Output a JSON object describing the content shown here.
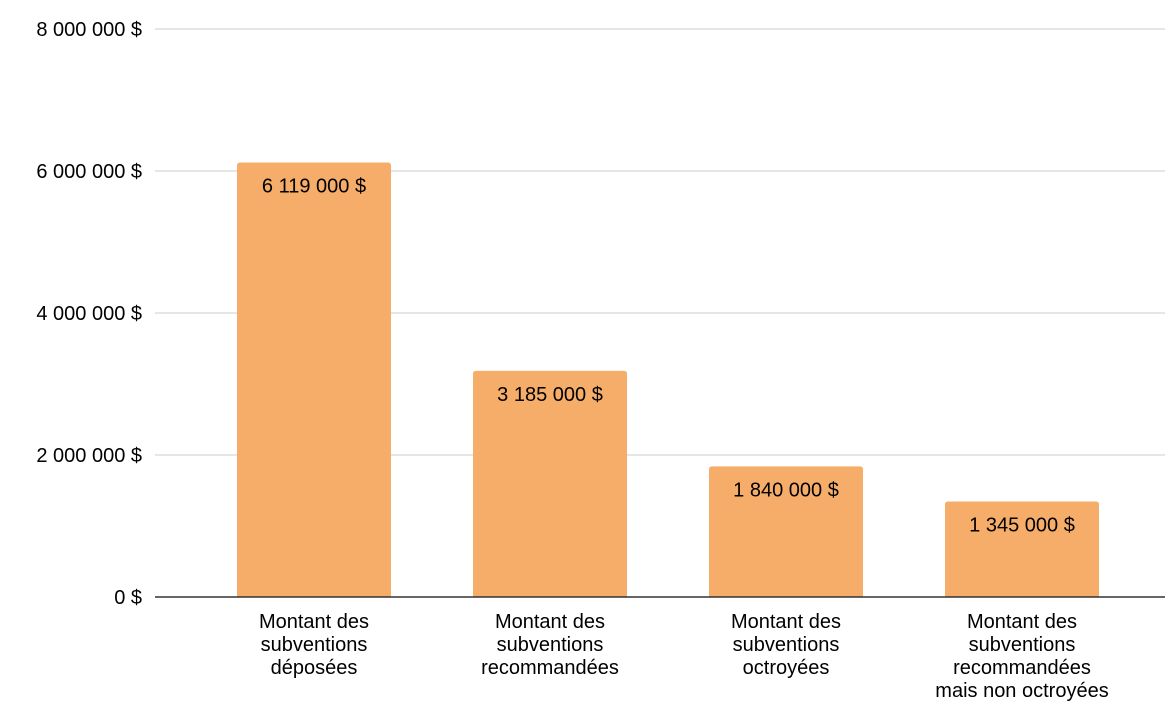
{
  "chart_data": {
    "type": "bar",
    "title": "",
    "xlabel": "",
    "ylabel": "",
    "categories": [
      [
        "Montant des",
        "subventions",
        "déposées"
      ],
      [
        "Montant des",
        "subventions",
        "recommandées"
      ],
      [
        "Montant des",
        "subventions",
        "octroyées"
      ],
      [
        "Montant des",
        "subventions",
        "recommandées",
        "mais non octroyées"
      ]
    ],
    "values": [
      6119000,
      3185000,
      1840000,
      1345000
    ],
    "value_labels": [
      "6 119 000 $",
      "3 185 000 $",
      "1 840 000 $",
      "1 345 000 $"
    ],
    "ylim": [
      0,
      8000000
    ],
    "y_ticks": [
      0,
      2000000,
      4000000,
      6000000,
      8000000
    ],
    "y_tick_labels": [
      "0 $",
      "2 000 000 $",
      "4 000 000 $",
      "6 000 000 $",
      "8 000 000 $"
    ],
    "grid": true,
    "legend": "none",
    "colors": {
      "bar": "#f5ad69",
      "grid": "#cccccc",
      "axis": "#333333"
    }
  }
}
